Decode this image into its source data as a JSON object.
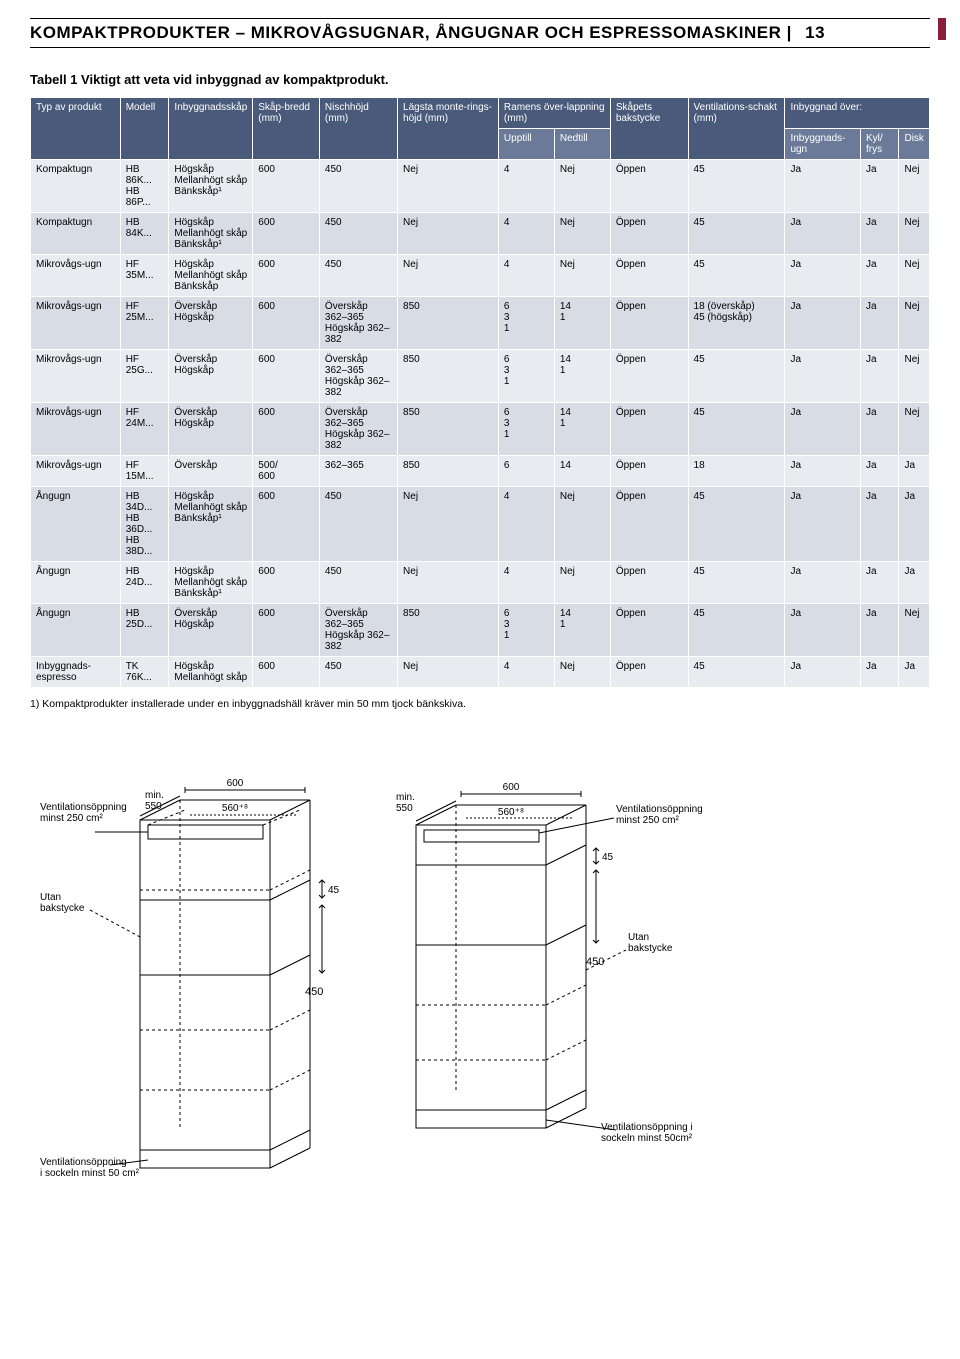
{
  "header": {
    "title": "KOMPAKTPRODUKTER – MIKROVÅGSUGNAR, ÅNGUGNAR OCH ESPRESSOMASKINER",
    "page_number": "13"
  },
  "side_tab_color": "#8a1e3a",
  "table": {
    "caption": "Tabell 1 Viktigt att veta vid inbyggnad av kompaktprodukt.",
    "header_bg_color": "#4a5a7a",
    "subheader_bg_color": "#6a7a98",
    "row_odd_bg": "#e8ebef",
    "row_even_bg": "#d8dde5",
    "columns_row1": [
      {
        "label": "Typ av produkt",
        "rowspan": 2
      },
      {
        "label": "Modell",
        "rowspan": 2
      },
      {
        "label": "Inbyggnadsskåp",
        "rowspan": 2
      },
      {
        "label": "Skåp-bredd (mm)",
        "rowspan": 2
      },
      {
        "label": "Nischhöjd (mm)",
        "rowspan": 2
      },
      {
        "label": "Lägsta monte-rings-höjd (mm)",
        "rowspan": 2
      },
      {
        "label": "Ramens över-lappning (mm)",
        "colspan": 2
      },
      {
        "label": "Skåpets bakstycke",
        "rowspan": 2
      },
      {
        "label": "Ventilations-schakt (mm)",
        "rowspan": 2
      },
      {
        "label": "Inbyggnad över:",
        "colspan": 3
      }
    ],
    "columns_row2": [
      "Upptill",
      "Nedtill",
      "Inbyggnads-ugn",
      "Kyl/ frys",
      "Disk"
    ],
    "rows": [
      {
        "c": [
          "Kompaktugn",
          "HB 86K...\nHB 86P...",
          "Högskåp\nMellanhögt skåp\nBänkskåp¹",
          "600",
          "450",
          "Nej",
          "4",
          "Nej",
          "Öppen",
          "45",
          "Ja",
          "Ja",
          "Nej"
        ]
      },
      {
        "c": [
          "Kompaktugn",
          "HB 84K...",
          "Högskåp\nMellanhögt skåp\nBänkskåp¹",
          "600",
          "450",
          "Nej",
          "4",
          "Nej",
          "Öppen",
          "45",
          "Ja",
          "Ja",
          "Nej"
        ]
      },
      {
        "c": [
          "Mikrovågs-ugn",
          "HF 35M...",
          "Högskåp\nMellanhögt skåp\nBänkskåp",
          "600",
          "450",
          "Nej",
          "4",
          "Nej",
          "Öppen",
          "45",
          "Ja",
          "Ja",
          "Nej"
        ]
      },
      {
        "c": [
          "Mikrovågs-ugn",
          "HF 25M...",
          "Överskåp\nHögskåp",
          "600",
          "Överskåp 362–365\nHögskåp 362–382",
          "850",
          "6\n3\n1",
          "14\n1",
          "Öppen",
          "18 (överskåp)\n45 (högskåp)",
          "Ja",
          "Ja",
          "Nej"
        ]
      },
      {
        "c": [
          "Mikrovågs-ugn",
          "HF 25G...",
          "Överskåp\nHögskåp",
          "600",
          "Överskåp 362–365\nHögskåp 362–382",
          "850",
          "6\n3\n1",
          "14\n1",
          "Öppen",
          "45",
          "Ja",
          "Ja",
          "Nej"
        ]
      },
      {
        "c": [
          "Mikrovågs-ugn",
          "HF 24M...",
          "Överskåp\nHögskåp",
          "600",
          "Överskåp 362–365\nHögskåp 362–382",
          "850",
          "6\n3\n1",
          "14\n1",
          "Öppen",
          "45",
          "Ja",
          "Ja",
          "Nej"
        ]
      },
      {
        "c": [
          "Mikrovågs-ugn",
          "HF 15M...",
          "Överskåp",
          "500/\n600",
          "362–365",
          "850",
          "6",
          "14",
          "Öppen",
          "18",
          "Ja",
          "Ja",
          "Ja"
        ]
      },
      {
        "c": [
          "Ångugn",
          "HB 34D...\nHB 36D...\nHB 38D...",
          "Högskåp\nMellanhögt skåp\nBänkskåp¹",
          "600",
          "450",
          "Nej",
          "4",
          "Nej",
          "Öppen",
          "45",
          "Ja",
          "Ja",
          "Ja"
        ]
      },
      {
        "c": [
          "Ångugn",
          "HB 24D...",
          "Högskåp\nMellanhögt skåp\nBänkskåp¹",
          "600",
          "450",
          "Nej",
          "4",
          "Nej",
          "Öppen",
          "45",
          "Ja",
          "Ja",
          "Ja"
        ]
      },
      {
        "c": [
          "Ångugn",
          "HB 25D...",
          "Överskåp\nHögskåp",
          "600",
          "Överskåp 362–365\nHögskåp 362–382",
          "850",
          "6\n3\n1",
          "14\n1",
          "Öppen",
          "45",
          "Ja",
          "Ja",
          "Nej"
        ]
      },
      {
        "c": [
          "Inbyggnads-espresso",
          "TK 76K...",
          "Högskåp\nMellanhögt skåp",
          "600",
          "450",
          "Nej",
          "4",
          "Nej",
          "Öppen",
          "45",
          "Ja",
          "Ja",
          "Ja"
        ]
      }
    ],
    "footnote": "1) Kompaktprodukter installerade under en inbyggnadshäll kräver min 50 mm tjock bänkskiva."
  },
  "diagrams": {
    "stroke": "#000000",
    "fontsize_small": 10,
    "left": {
      "vent_top": "Ventilationsöppning\nminst 250 cm²",
      "utan": "Utan\nbakstycke",
      "min_550": "min.\n550",
      "w600": "600",
      "w560": "560⁺⁸",
      "h45": "45",
      "h450": "450",
      "vent_bottom": "Ventilationsöppning\ni sockeln minst 50 cm²"
    },
    "right": {
      "vent_top": "Ventilationsöppning\nminst 250 cm²",
      "utan": "Utan\nbakstycke",
      "min_550": "min.\n550",
      "w600": "600",
      "w560": "560⁺⁸",
      "h45": "45",
      "h450": "450",
      "vent_bottom": "Ventilationsöppning i\nsockeln minst 50cm²"
    }
  }
}
